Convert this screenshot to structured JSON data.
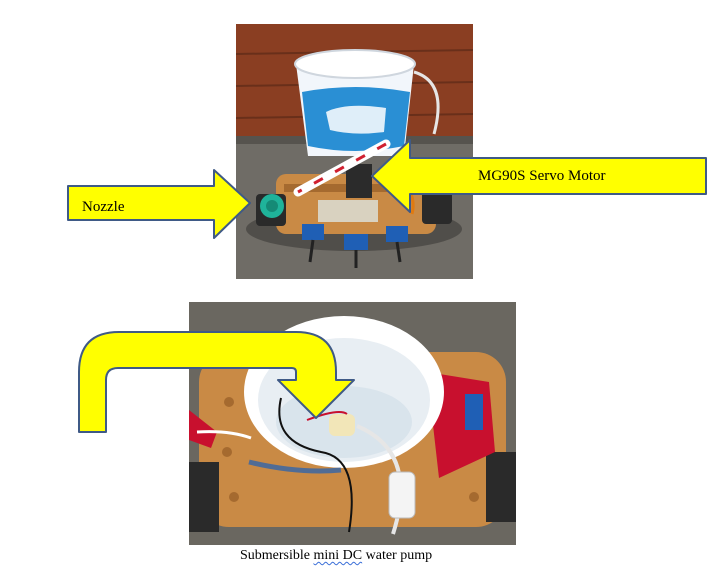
{
  "labels": {
    "nozzle": "Nozzle",
    "servo": "MG90S Servo Motor",
    "caption_prefix": "Submersible ",
    "caption_underlined": "mini DC",
    "caption_suffix": " water pump"
  },
  "colors": {
    "arrow_fill": "#ffff00",
    "arrow_stroke": "#3f5a86",
    "wall_brown": "#8a3e22",
    "floor_gray": "#6f6c66",
    "yogurt_blue": "#2a8fd4",
    "nozzle_teal": "#1fb39a",
    "chassis_wood": "#c98a45",
    "sensor_blue": "#1f5fb5",
    "tape_red": "#c8102e"
  }
}
